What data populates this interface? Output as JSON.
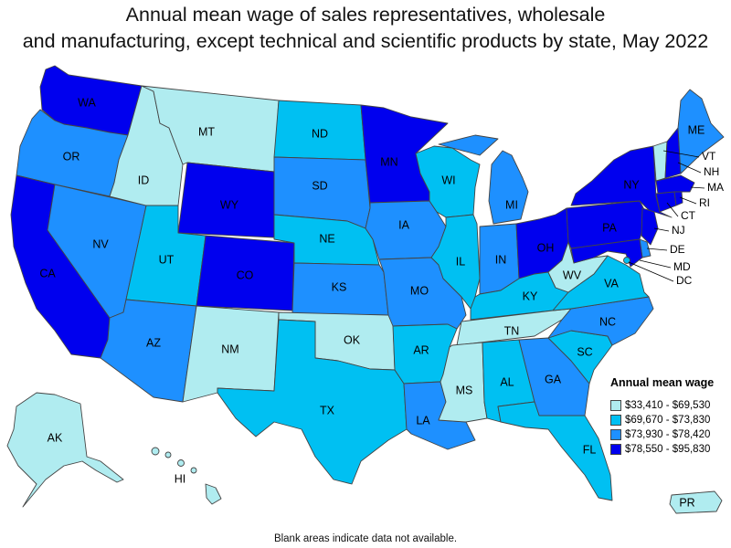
{
  "title": {
    "line1": "Annual mean wage of sales representatives, wholesale",
    "line2": "and manufacturing, except technical and scientific products by state, May 2022"
  },
  "legend": {
    "title": "Annual mean wage",
    "ranges": [
      {
        "label": "$33,410 - $69,530",
        "color": "#b0ecf0"
      },
      {
        "label": "$69,670 - $73,830",
        "color": "#00c0f2"
      },
      {
        "label": "$73,930 - $78,420",
        "color": "#1e90ff"
      },
      {
        "label": "$78,550 - $95,830",
        "color": "#0000ee"
      }
    ]
  },
  "footnote": "Blank areas indicate data not available.",
  "states": {
    "WA": 4,
    "OR": 3,
    "CA": 4,
    "NV": 3,
    "ID": 1,
    "MT": 1,
    "WY": 4,
    "UT": 2,
    "CO": 4,
    "AZ": 3,
    "NM": 1,
    "ND": 2,
    "SD": 3,
    "NE": 2,
    "KS": 3,
    "OK": 1,
    "TX": 2,
    "MN": 4,
    "IA": 3,
    "MO": 3,
    "AR": 2,
    "LA": 3,
    "WI": 2,
    "IL": 2,
    "MI": 3,
    "IN": 3,
    "OH": 4,
    "KY": 2,
    "TN": 1,
    "MS": 1,
    "AL": 2,
    "GA": 3,
    "FL": 2,
    "SC": 2,
    "NC": 3,
    "VA": 2,
    "WV": 1,
    "PA": 4,
    "NY": 4,
    "VT": 1,
    "NH": 4,
    "ME": 3,
    "MA": 4,
    "RI": 4,
    "CT": 4,
    "NJ": 4,
    "DE": 3,
    "MD": 4,
    "DC": 2,
    "AK": 1,
    "HI": 1,
    "PR": 1
  }
}
